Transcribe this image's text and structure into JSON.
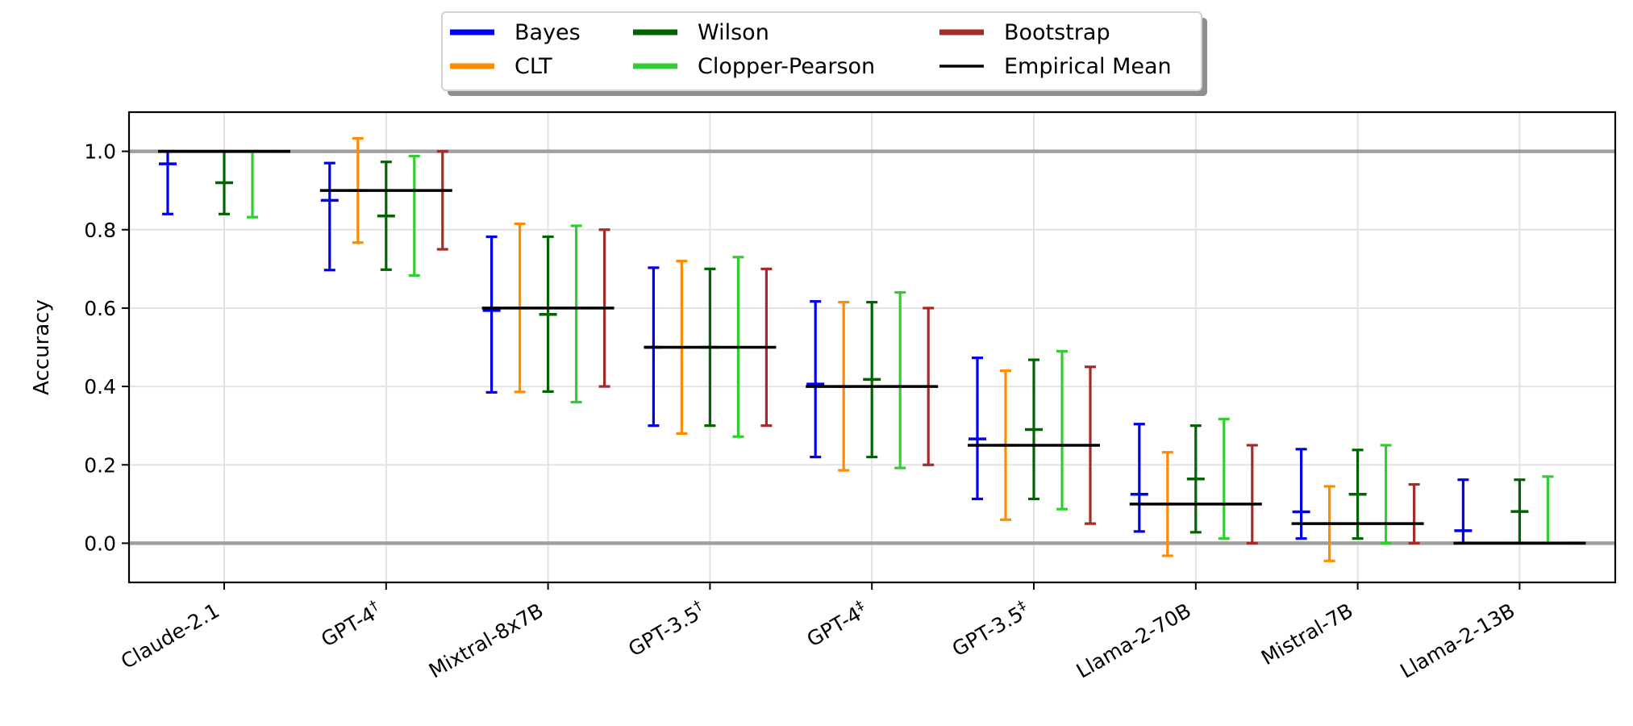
{
  "chart_data": {
    "type": "errorbar",
    "ylabel": "Accuracy",
    "xlabel": "",
    "ylim": [
      -0.1,
      1.1
    ],
    "yticks": [
      0.0,
      0.2,
      0.4,
      0.6,
      0.8,
      1.0
    ],
    "ytick_labels": [
      "0.0",
      "0.2",
      "0.4",
      "0.6",
      "0.8",
      "1.0"
    ],
    "grid": true,
    "reference_lines": [
      0.0,
      1.0
    ],
    "legend": {
      "placement": "top-center",
      "entries": [
        "Bayes",
        "CLT",
        "Wilson",
        "Clopper-Pearson",
        "Bootstrap",
        "Empirical Mean"
      ]
    },
    "colors": {
      "Bayes": "#0000ee",
      "CLT": "#ff8c00",
      "Wilson": "#006400",
      "Clopper-Pearson": "#32cd32",
      "Bootstrap": "#a52a2a",
      "Empirical Mean": "#000000",
      "reference": "#a0a0a0"
    },
    "categories": [
      {
        "base": "Claude-2.1",
        "sup": ""
      },
      {
        "base": "GPT-4",
        "sup": "†"
      },
      {
        "base": "Mixtral-8x7B",
        "sup": ""
      },
      {
        "base": "GPT-3.5",
        "sup": "†"
      },
      {
        "base": "GPT-4",
        "sup": "‡"
      },
      {
        "base": "GPT-3.5",
        "sup": "‡"
      },
      {
        "base": "Llama-2-70B",
        "sup": ""
      },
      {
        "base": "Mistral-7B",
        "sup": ""
      },
      {
        "base": "Llama-2-13B",
        "sup": ""
      }
    ],
    "empirical_mean": [
      1.0,
      0.9,
      0.6,
      0.5,
      0.4,
      0.25,
      0.1,
      0.05,
      0.0
    ],
    "series": [
      {
        "name": "Bayes",
        "lower": [
          0.84,
          0.697,
          0.385,
          0.3,
          0.22,
          0.113,
          0.03,
          0.012,
          0.0
        ],
        "upper": [
          1.0,
          0.97,
          0.782,
          0.703,
          0.617,
          0.473,
          0.304,
          0.24,
          0.162
        ],
        "center": [
          0.968,
          0.875,
          0.594,
          0.5,
          0.406,
          0.266,
          0.125,
          0.08,
          0.032
        ]
      },
      {
        "name": "CLT",
        "lower": [
          1.0,
          0.767,
          0.386,
          0.28,
          0.186,
          0.06,
          -0.032,
          -0.045,
          0.0
        ],
        "upper": [
          1.0,
          1.033,
          0.815,
          0.72,
          0.615,
          0.44,
          0.232,
          0.145,
          0.0
        ],
        "center": [
          1.0,
          0.9,
          0.6,
          0.5,
          0.4,
          0.25,
          0.1,
          0.05,
          0.0
        ]
      },
      {
        "name": "Wilson",
        "lower": [
          0.84,
          0.698,
          0.387,
          0.3,
          0.22,
          0.113,
          0.028,
          0.012,
          0.0
        ],
        "upper": [
          1.0,
          0.973,
          0.782,
          0.7,
          0.615,
          0.468,
          0.3,
          0.238,
          0.162
        ],
        "center": [
          0.92,
          0.835,
          0.584,
          0.5,
          0.418,
          0.29,
          0.164,
          0.125,
          0.081
        ]
      },
      {
        "name": "Clopper-Pearson",
        "lower": [
          0.832,
          0.683,
          0.36,
          0.272,
          0.192,
          0.087,
          0.012,
          0.0,
          0.0
        ],
        "upper": [
          1.0,
          0.988,
          0.81,
          0.73,
          0.64,
          0.49,
          0.317,
          0.25,
          0.17
        ],
        "center": null
      },
      {
        "name": "Bootstrap",
        "lower": [
          1.0,
          0.75,
          0.4,
          0.3,
          0.2,
          0.05,
          0.0,
          0.0,
          0.0
        ],
        "upper": [
          1.0,
          1.0,
          0.8,
          0.7,
          0.6,
          0.45,
          0.25,
          0.15,
          0.0
        ],
        "center": null
      }
    ]
  }
}
